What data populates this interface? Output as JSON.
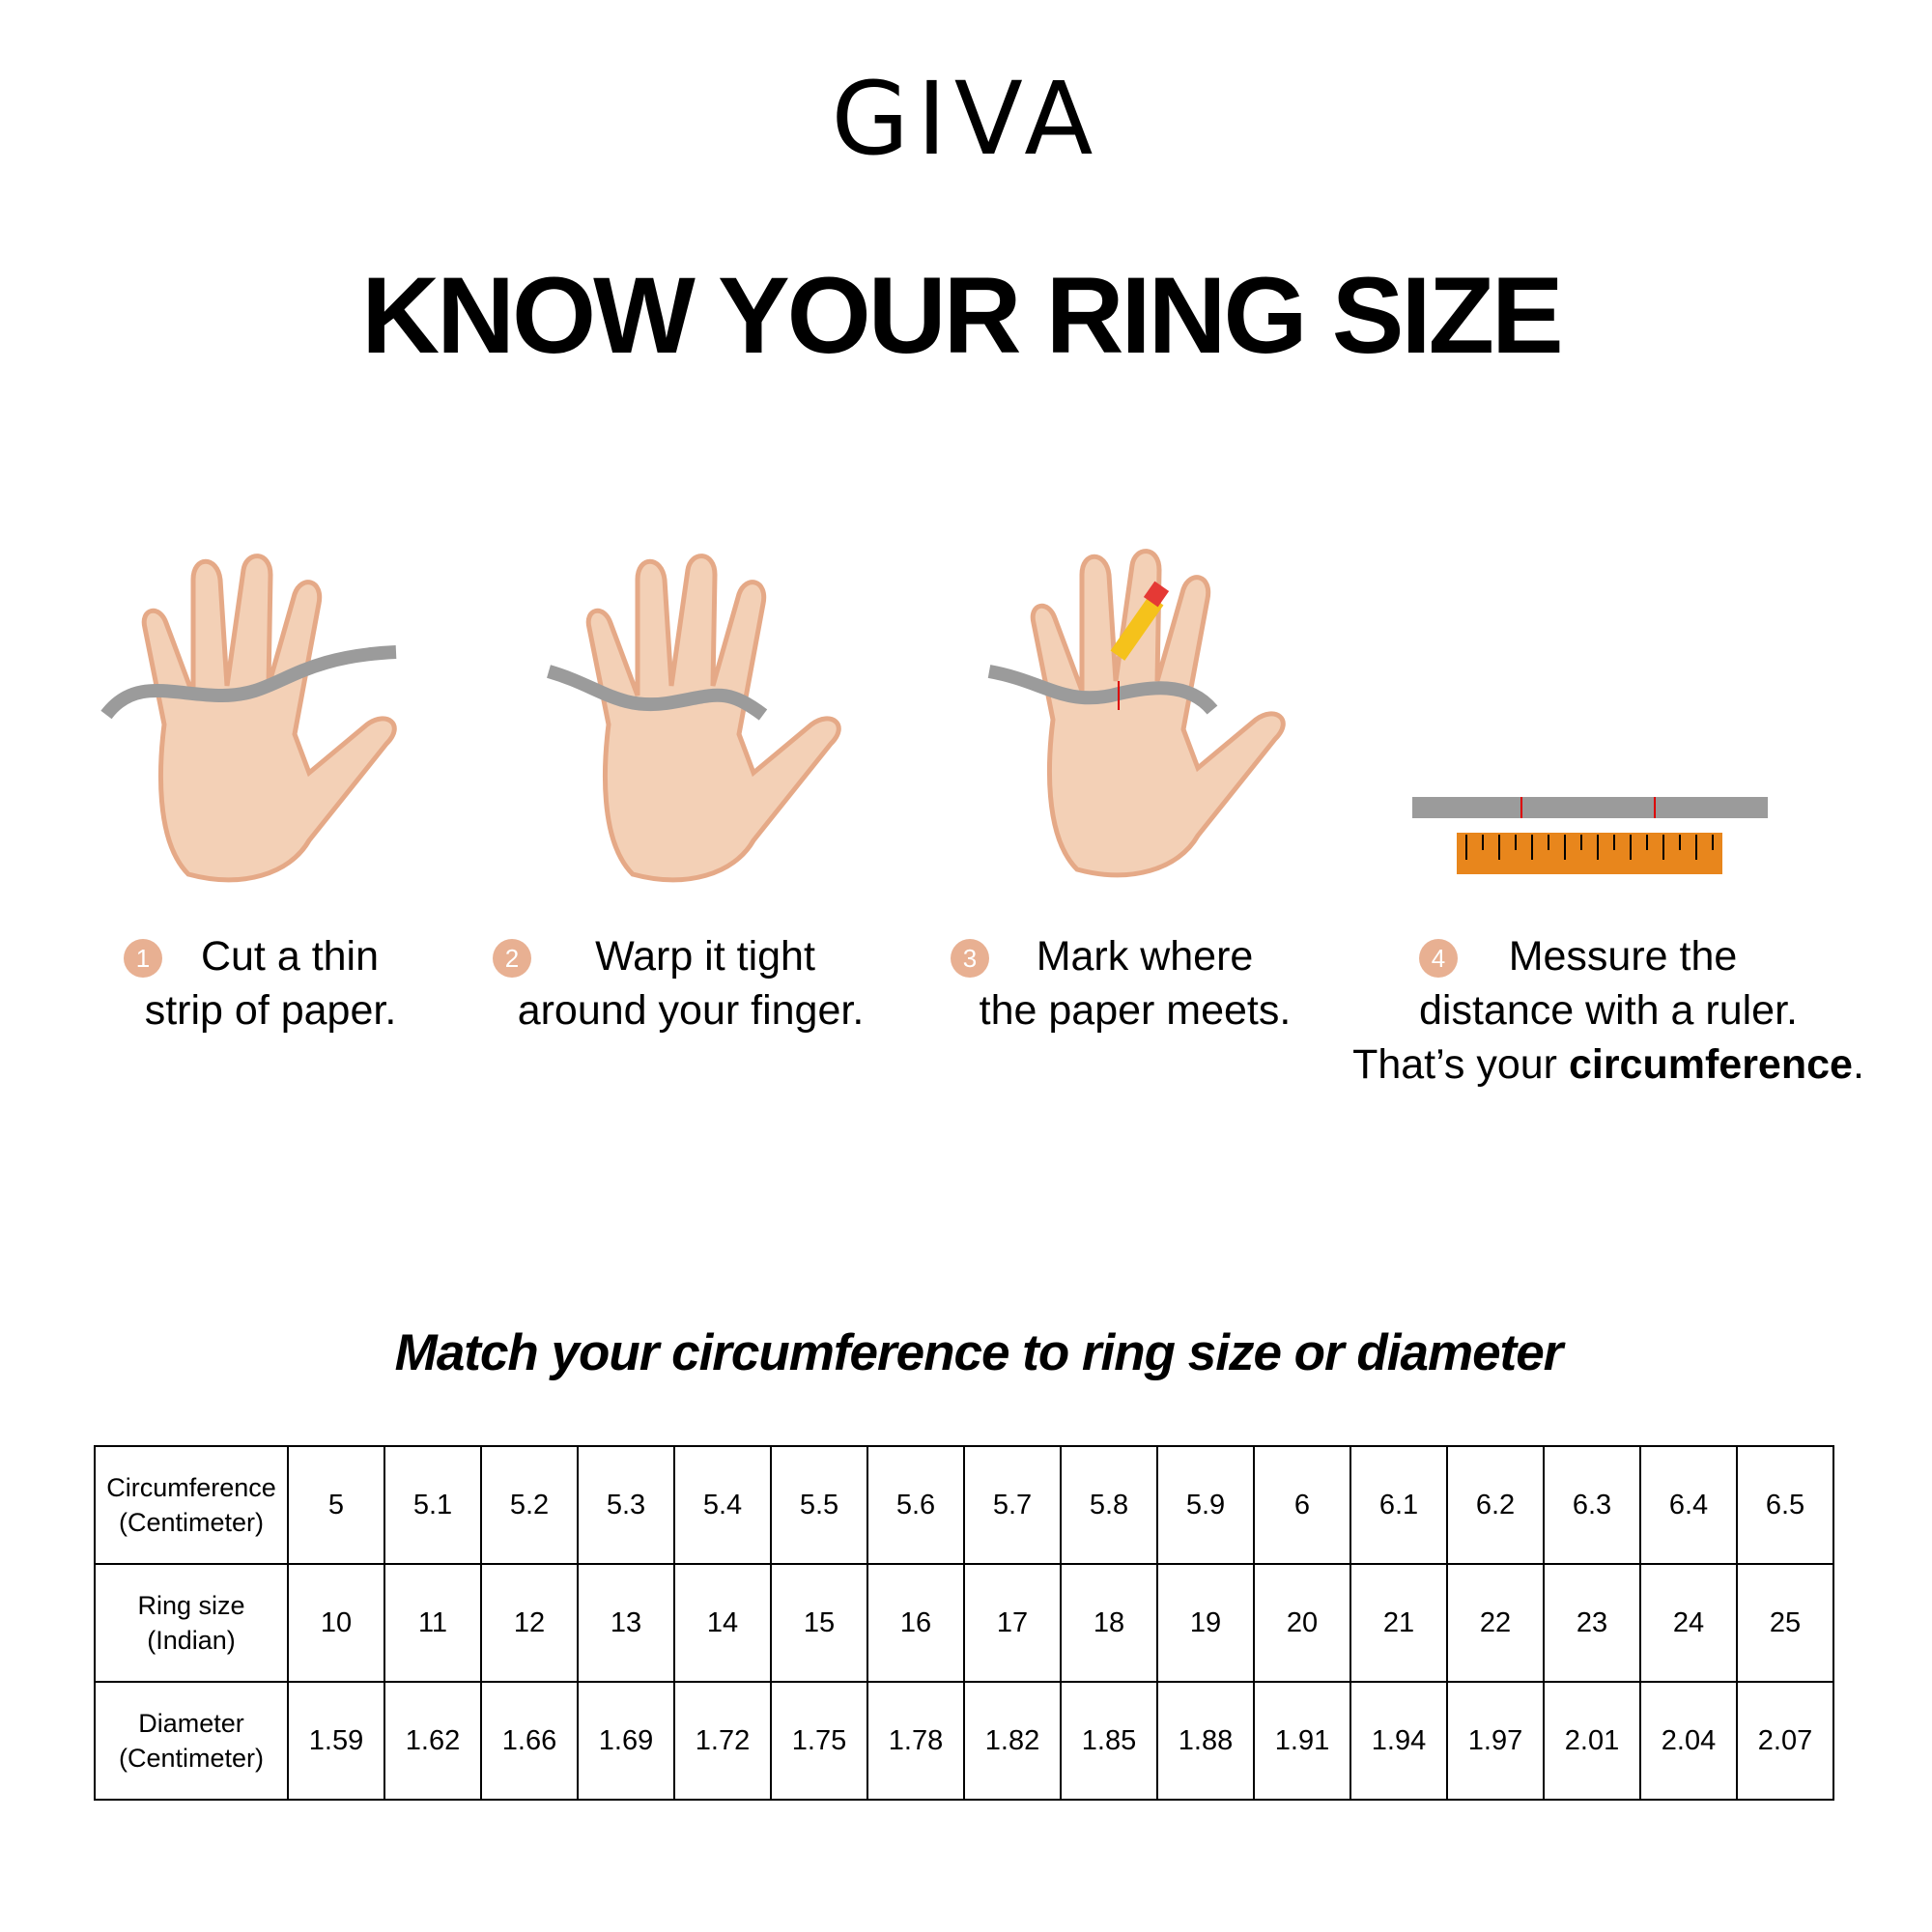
{
  "brand": {
    "logo_text": "GIVA"
  },
  "title": "KNOW YOUR RING SIZE",
  "steps": [
    {
      "number": "1",
      "line1": "Cut a thin",
      "line2": "strip of paper.",
      "icon": "hand-with-paper-strip"
    },
    {
      "number": "2",
      "line1": "Warp it tight",
      "line2": "around your finger.",
      "icon": "hand-wrapped-finger"
    },
    {
      "number": "3",
      "line1": "Mark where",
      "line2": "the paper meets.",
      "icon": "hand-pencil-mark"
    },
    {
      "number": "4",
      "line1": "Messure the",
      "line2": "distance with a ruler.",
      "line3_prefix": "That’s your ",
      "line3_bold": "circumference",
      "line3_suffix": ".",
      "icon": "paper-strip-and-ruler"
    }
  ],
  "subtitle": "Match your circumference to ring size or diameter",
  "table": {
    "rows": [
      {
        "header_line1": "Circumference",
        "header_line2": "(Centimeter)",
        "values": [
          "5",
          "5.1",
          "5.2",
          "5.3",
          "5.4",
          "5.5",
          "5.6",
          "5.7",
          "5.8",
          "5.9",
          "6",
          "6.1",
          "6.2",
          "6.3",
          "6.4",
          "6.5"
        ]
      },
      {
        "header_line1": "Ring size",
        "header_line2": "(Indian)",
        "values": [
          "10",
          "11",
          "12",
          "13",
          "14",
          "15",
          "16",
          "17",
          "18",
          "19",
          "20",
          "21",
          "22",
          "23",
          "24",
          "25"
        ]
      },
      {
        "header_line1": "Diameter",
        "header_line2": "(Centimeter)",
        "values": [
          "1.59",
          "1.62",
          "1.66",
          "1.69",
          "1.72",
          "1.75",
          "1.78",
          "1.82",
          "1.85",
          "1.88",
          "1.91",
          "1.94",
          "1.97",
          "2.01",
          "2.04",
          "2.07"
        ]
      }
    ]
  },
  "colors": {
    "skin": "#f3d0b6",
    "skin_shadow": "#e5a987",
    "paper": "#9b9b9b",
    "ruler": "#e8861c",
    "step_badge": "#e8b092"
  }
}
